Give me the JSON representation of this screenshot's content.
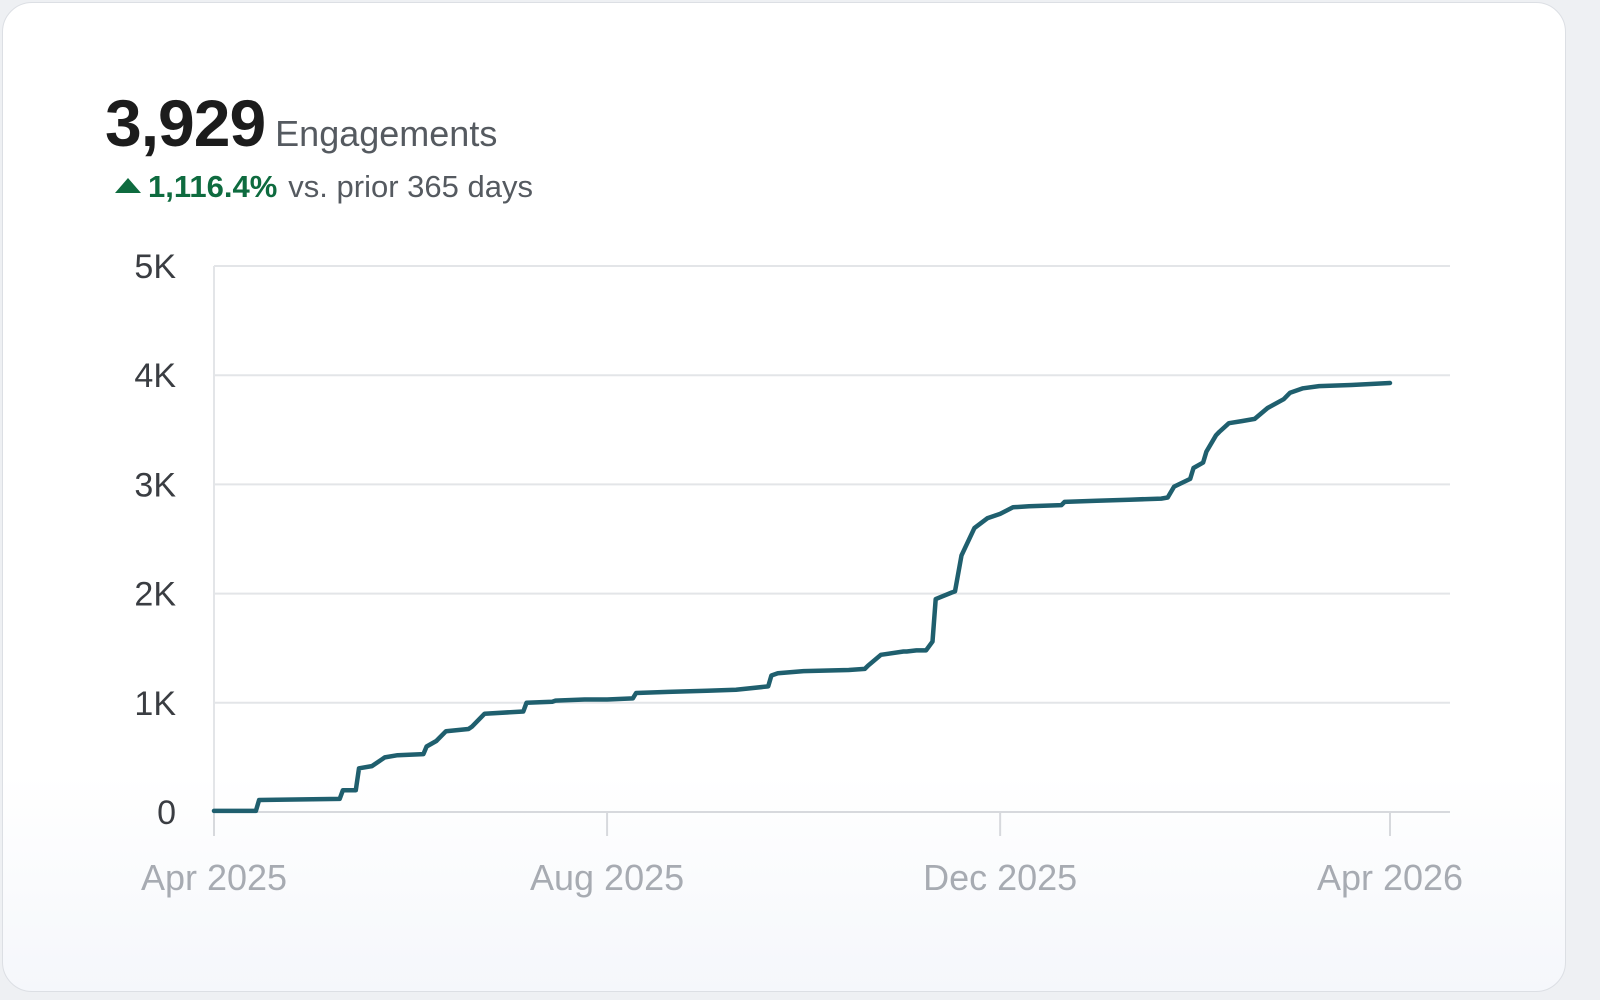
{
  "summary": {
    "total_value": "3,929",
    "total_label": "Engagements",
    "change_direction_icon": "triangle-up-icon",
    "change_value": "1,116.4%",
    "change_text": "vs. prior 365 days",
    "positive_color": "#0e6b3f"
  },
  "chart_data": {
    "type": "line",
    "title": "",
    "xlabel": "",
    "ylabel": "",
    "line_color": "#1f5f6e",
    "grid": true,
    "ylim": [
      0,
      5000
    ],
    "xlim": [
      "2025-04-01",
      "2026-04-01"
    ],
    "y_ticks": [
      {
        "value": 0,
        "label": "0"
      },
      {
        "value": 1000,
        "label": "1K"
      },
      {
        "value": 2000,
        "label": "2K"
      },
      {
        "value": 3000,
        "label": "3K"
      },
      {
        "value": 4000,
        "label": "4K"
      },
      {
        "value": 5000,
        "label": "5K"
      }
    ],
    "x_ticks": [
      {
        "date": "2025-04-01",
        "label": "Apr 2025"
      },
      {
        "date": "2025-08-01",
        "label": "Aug 2025"
      },
      {
        "date": "2025-12-01",
        "label": "Dec 2025"
      },
      {
        "date": "2026-04-01",
        "label": "Apr 2026"
      }
    ],
    "series": [
      {
        "name": "",
        "x": [
          "2025-04-01",
          "2025-04-14",
          "2025-04-15",
          "2025-05-10",
          "2025-05-11",
          "2025-05-15",
          "2025-05-16",
          "2025-05-20",
          "2025-05-24",
          "2025-05-28",
          "2025-06-05",
          "2025-06-06",
          "2025-06-09",
          "2025-06-12",
          "2025-06-19",
          "2025-06-20",
          "2025-06-24",
          "2025-07-06",
          "2025-07-07",
          "2025-07-15",
          "2025-07-16",
          "2025-07-25",
          "2025-08-01",
          "2025-08-09",
          "2025-08-10",
          "2025-08-20",
          "2025-09-01",
          "2025-09-10",
          "2025-09-20",
          "2025-09-21",
          "2025-09-23",
          "2025-10-01",
          "2025-10-15",
          "2025-10-20",
          "2025-10-21",
          "2025-10-25",
          "2025-11-01",
          "2025-11-02",
          "2025-11-05",
          "2025-11-08",
          "2025-11-10",
          "2025-11-11",
          "2025-11-16",
          "2025-11-17",
          "2025-11-19",
          "2025-11-23",
          "2025-11-27",
          "2025-12-01",
          "2025-12-05",
          "2025-12-10",
          "2025-12-20",
          "2025-12-21",
          "2025-12-31",
          "2026-01-10",
          "2026-01-20",
          "2026-01-22",
          "2026-01-24",
          "2026-01-29",
          "2026-01-30",
          "2026-02-02",
          "2026-02-03",
          "2026-02-06",
          "2026-02-07",
          "2026-02-10",
          "2026-02-14",
          "2026-02-18",
          "2026-02-22",
          "2026-02-27",
          "2026-03-01",
          "2026-03-05",
          "2026-03-10",
          "2026-03-20",
          "2026-04-01"
        ],
        "values": [
          10,
          10,
          110,
          120,
          200,
          200,
          400,
          420,
          500,
          520,
          530,
          600,
          650,
          740,
          760,
          780,
          900,
          920,
          1000,
          1010,
          1020,
          1030,
          1030,
          1040,
          1090,
          1100,
          1110,
          1120,
          1150,
          1250,
          1270,
          1290,
          1300,
          1310,
          1340,
          1440,
          1470,
          1470,
          1480,
          1480,
          1560,
          1950,
          2010,
          2020,
          2350,
          2600,
          2690,
          2730,
          2790,
          2800,
          2810,
          2840,
          2850,
          2860,
          2870,
          2880,
          2980,
          3050,
          3150,
          3200,
          3300,
          3450,
          3480,
          3560,
          3580,
          3600,
          3700,
          3780,
          3840,
          3880,
          3900,
          3910,
          3929
        ]
      }
    ]
  }
}
